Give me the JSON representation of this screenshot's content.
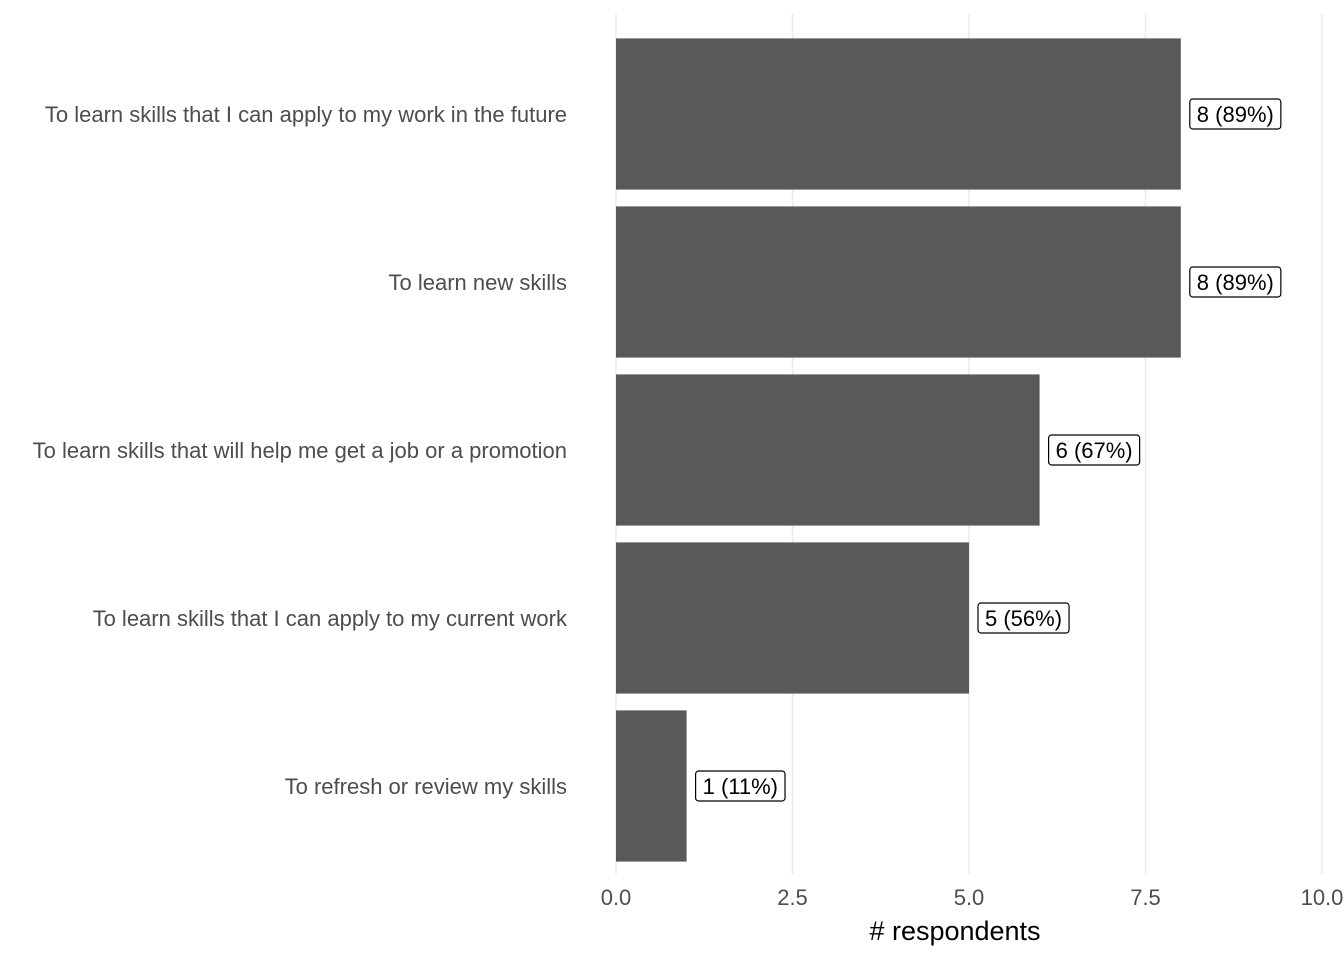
{
  "chart_data": {
    "type": "bar",
    "orientation": "horizontal",
    "categories": [
      "To learn skills that I can apply to my work in the future",
      "To learn new skills",
      "To learn skills that will help me get a job or a promotion",
      "To learn skills that I can apply to my current work",
      "To refresh or review my skills"
    ],
    "values": [
      8,
      8,
      6,
      5,
      1
    ],
    "data_labels": [
      "8 (89%)",
      "8 (89%)",
      "6 (67%)",
      "5 (56%)",
      "1 (11%)"
    ],
    "xlabel": "# respondents",
    "ylabel": "",
    "xlim": [
      0,
      10
    ],
    "x_ticks": [
      0,
      2.5,
      5,
      7.5,
      10
    ],
    "x_tick_labels": [
      "0.0",
      "2.5",
      "5.0",
      "7.5",
      "10.0"
    ],
    "grid": true,
    "bar_color": "#595959",
    "grid_color": "#ebebeb"
  }
}
